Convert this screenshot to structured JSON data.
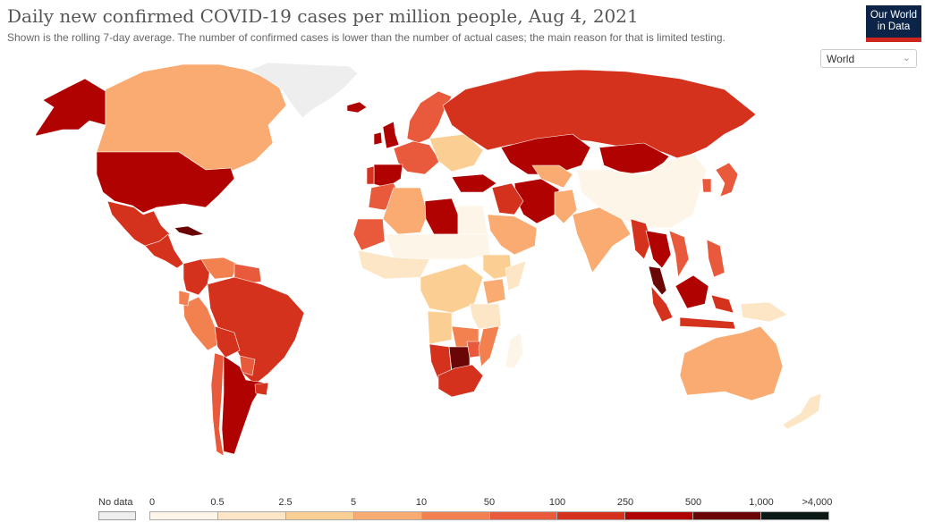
{
  "title": "Daily new confirmed COVID-19 cases per million people, Aug 4, 2021",
  "subtitle": "Shown is the rolling 7-day average. The number of confirmed cases is lower than the number of actual cases; the main reason for that is limited testing.",
  "logo": {
    "line1": "Our World",
    "line2": "in Data"
  },
  "region_selector": {
    "value": "World"
  },
  "legend": {
    "no_data_label": "No data",
    "no_data_color": "#eeeeee",
    "ticks": [
      "0",
      "0.5",
      "2.5",
      "5",
      "10",
      "50",
      "100",
      "250",
      "500",
      "1,000",
      ">4,000"
    ],
    "colors": [
      "#fdf5e8",
      "#fce6c6",
      "#fbcf94",
      "#f9ab72",
      "#f2814f",
      "#e85a3b",
      "#d5321e",
      "#b10202",
      "#6b0607",
      "#0b1a17"
    ]
  },
  "chart_data": {
    "type": "choropleth",
    "metric": "Daily new confirmed COVID-19 cases per million people",
    "date": "Aug 4, 2021",
    "bins": [
      0,
      0.5,
      2.5,
      5,
      10,
      50,
      100,
      250,
      500,
      1000,
      4000
    ],
    "regions": [
      {
        "name": "Alaska",
        "bin": 7
      },
      {
        "name": "Canada",
        "bin": 3
      },
      {
        "name": "Greenland",
        "bin": -1
      },
      {
        "name": "United States",
        "bin": 7
      },
      {
        "name": "Mexico",
        "bin": 6
      },
      {
        "name": "Cuba",
        "bin": 8
      },
      {
        "name": "Central America",
        "bin": 6
      },
      {
        "name": "Colombia",
        "bin": 6
      },
      {
        "name": "Venezuela",
        "bin": 4
      },
      {
        "name": "Guyana",
        "bin": 5
      },
      {
        "name": "Peru",
        "bin": 4
      },
      {
        "name": "Ecuador",
        "bin": 4
      },
      {
        "name": "Brazil",
        "bin": 6
      },
      {
        "name": "Bolivia",
        "bin": 6
      },
      {
        "name": "Paraguay",
        "bin": 5
      },
      {
        "name": "Chile",
        "bin": 5
      },
      {
        "name": "Argentina",
        "bin": 7
      },
      {
        "name": "Uruguay",
        "bin": 6
      },
      {
        "name": "Iceland",
        "bin": 7
      },
      {
        "name": "Ireland",
        "bin": 7
      },
      {
        "name": "United Kingdom",
        "bin": 7
      },
      {
        "name": "Scandinavia",
        "bin": 5
      },
      {
        "name": "Western Europe",
        "bin": 5
      },
      {
        "name": "Spain",
        "bin": 7
      },
      {
        "name": "Portugal",
        "bin": 6
      },
      {
        "name": "Eastern Europe",
        "bin": 2
      },
      {
        "name": "Russia",
        "bin": 6
      },
      {
        "name": "Kazakhstan",
        "bin": 7
      },
      {
        "name": "Mongolia",
        "bin": 7
      },
      {
        "name": "China",
        "bin": 0
      },
      {
        "name": "Japan",
        "bin": 5
      },
      {
        "name": "South Korea",
        "bin": 5
      },
      {
        "name": "Turkey",
        "bin": 7
      },
      {
        "name": "Iran",
        "bin": 7
      },
      {
        "name": "Iraq",
        "bin": 6
      },
      {
        "name": "Saudi Arabia",
        "bin": 3
      },
      {
        "name": "Middle Asia",
        "bin": 3
      },
      {
        "name": "India",
        "bin": 3
      },
      {
        "name": "Pakistan",
        "bin": 3
      },
      {
        "name": "Myanmar",
        "bin": 6
      },
      {
        "name": "Thailand",
        "bin": 7
      },
      {
        "name": "Vietnam",
        "bin": 5
      },
      {
        "name": "Malaysia",
        "bin": 8
      },
      {
        "name": "Indonesia",
        "bin": 6
      },
      {
        "name": "Borneo",
        "bin": 7
      },
      {
        "name": "Philippines",
        "bin": 5
      },
      {
        "name": "Papua New Guinea",
        "bin": 1
      },
      {
        "name": "Australia",
        "bin": 3
      },
      {
        "name": "New Zealand",
        "bin": 1
      },
      {
        "name": "Morocco",
        "bin": 5
      },
      {
        "name": "Algeria",
        "bin": 3
      },
      {
        "name": "Libya",
        "bin": 7
      },
      {
        "name": "Egypt",
        "bin": 0
      },
      {
        "name": "Mauritania",
        "bin": 5
      },
      {
        "name": "Sahel",
        "bin": 0
      },
      {
        "name": "West Africa",
        "bin": 1
      },
      {
        "name": "Ethiopia",
        "bin": 2
      },
      {
        "name": "Somalia",
        "bin": 1
      },
      {
        "name": "Central Africa",
        "bin": 2
      },
      {
        "name": "Kenya",
        "bin": 3
      },
      {
        "name": "Tanzania",
        "bin": 1
      },
      {
        "name": "Zambia",
        "bin": 4
      },
      {
        "name": "Angola",
        "bin": 2
      },
      {
        "name": "Namibia",
        "bin": 6
      },
      {
        "name": "Botswana",
        "bin": 8
      },
      {
        "name": "Zimbabwe",
        "bin": 5
      },
      {
        "name": "Mozambique",
        "bin": 4
      },
      {
        "name": "Madagascar",
        "bin": 0
      },
      {
        "name": "South Africa",
        "bin": 6
      }
    ]
  }
}
